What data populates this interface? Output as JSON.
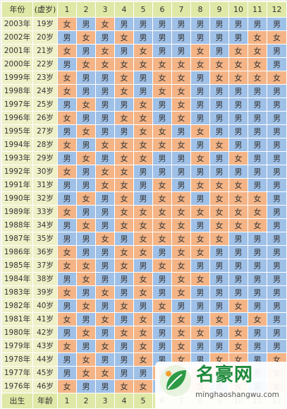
{
  "header": {
    "col_year": "年份",
    "col_age": "(虚岁)",
    "months": [
      "1",
      "2",
      "3",
      "4",
      "5",
      "6",
      "7",
      "8",
      "9",
      "10",
      "11",
      "12"
    ]
  },
  "footer": {
    "label_birth": "出生",
    "label_age": "年龄",
    "months": [
      "1",
      "2",
      "3",
      "4",
      "5",
      "6",
      "7",
      "8",
      "9",
      "10",
      "11",
      "12"
    ]
  },
  "rows": [
    {
      "year": "2003年",
      "age": "19岁",
      "cells": [
        "女",
        "男",
        "女",
        "男",
        "男",
        "男",
        "男",
        "男",
        "男",
        "男",
        "男",
        "男"
      ]
    },
    {
      "year": "2002年",
      "age": "20岁",
      "cells": [
        "男",
        "女",
        "男",
        "女",
        "男",
        "男",
        "男",
        "男",
        "男",
        "男",
        "女",
        "女"
      ]
    },
    {
      "year": "2001年",
      "age": "21岁",
      "cells": [
        "女",
        "男",
        "女",
        "男",
        "女",
        "男",
        "男",
        "女",
        "男",
        "女",
        "女",
        "男"
      ]
    },
    {
      "year": "2000年",
      "age": "22岁",
      "cells": [
        "男",
        "女",
        "女",
        "女",
        "女",
        "女",
        "女",
        "女",
        "女",
        "女",
        "女",
        "男"
      ]
    },
    {
      "year": "1999年",
      "age": "23岁",
      "cells": [
        "女",
        "男",
        "男",
        "女",
        "男",
        "女",
        "女",
        "男",
        "女",
        "女",
        "女",
        "女"
      ]
    },
    {
      "year": "1998年",
      "age": "24岁",
      "cells": [
        "女",
        "男",
        "男",
        "女",
        "男",
        "女",
        "女",
        "男",
        "男",
        "男",
        "男",
        "男"
      ]
    },
    {
      "year": "1997年",
      "age": "25岁",
      "cells": [
        "男",
        "女",
        "男",
        "男",
        "女",
        "男",
        "女",
        "男",
        "男",
        "男",
        "男",
        "男"
      ]
    },
    {
      "year": "1996年",
      "age": "26岁",
      "cells": [
        "女",
        "男",
        "男",
        "女",
        "女",
        "男",
        "女",
        "男",
        "男",
        "男",
        "男",
        "男"
      ]
    },
    {
      "year": "1995年",
      "age": "27岁",
      "cells": [
        "男",
        "女",
        "男",
        "男",
        "女",
        "女",
        "男",
        "女",
        "男",
        "男",
        "男",
        "男"
      ]
    },
    {
      "year": "1994年",
      "age": "28岁",
      "cells": [
        "女",
        "男",
        "女",
        "女",
        "女",
        "女",
        "女",
        "男",
        "女",
        "男",
        "男",
        "男"
      ]
    },
    {
      "year": "1993年",
      "age": "29岁",
      "cells": [
        "男",
        "女",
        "男",
        "女",
        "女",
        "男",
        "男",
        "女",
        "男",
        "女",
        "男",
        "男"
      ]
    },
    {
      "year": "1992年",
      "age": "30岁",
      "cells": [
        "女",
        "男",
        "女",
        "女",
        "男",
        "男",
        "男",
        "男",
        "男",
        "男",
        "男",
        "男"
      ]
    },
    {
      "year": "1991年",
      "age": "31岁",
      "cells": [
        "男",
        "男",
        "女",
        "女",
        "男",
        "女",
        "男",
        "女",
        "女",
        "女",
        "男",
        "男"
      ]
    },
    {
      "year": "1990年",
      "age": "32岁",
      "cells": [
        "男",
        "女",
        "男",
        "女",
        "男",
        "女",
        "女",
        "男",
        "女",
        "女",
        "女",
        "男"
      ]
    },
    {
      "year": "1989年",
      "age": "33岁",
      "cells": [
        "女",
        "男",
        "男",
        "女",
        "女",
        "女",
        "女",
        "女",
        "女",
        "女",
        "女",
        "男"
      ]
    },
    {
      "year": "1988年",
      "age": "34岁",
      "cells": [
        "男",
        "女",
        "男",
        "女",
        "女",
        "女",
        "女",
        "男",
        "女",
        "女",
        "女",
        "男"
      ]
    },
    {
      "year": "1987年",
      "age": "35岁",
      "cells": [
        "男",
        "男",
        "女",
        "男",
        "女",
        "女",
        "女",
        "女",
        "女",
        "男",
        "男",
        "男"
      ]
    },
    {
      "year": "1986年",
      "age": "36岁",
      "cells": [
        "女",
        "男",
        "男",
        "女",
        "女",
        "男",
        "女",
        "女",
        "男",
        "男",
        "男",
        "男"
      ]
    },
    {
      "year": "1985年",
      "age": "37岁",
      "cells": [
        "女",
        "女",
        "男",
        "女",
        "男",
        "女",
        "女",
        "男",
        "男",
        "男",
        "男",
        "男"
      ]
    },
    {
      "year": "1984年",
      "age": "38岁",
      "cells": [
        "男",
        "女",
        "男",
        "男",
        "女",
        "男",
        "女",
        "女",
        "男",
        "男",
        "男",
        "男"
      ]
    },
    {
      "year": "1983年",
      "age": "39岁",
      "cells": [
        "女",
        "男",
        "女",
        "男",
        "女",
        "男",
        "女",
        "男",
        "男",
        "男",
        "男",
        "男"
      ]
    },
    {
      "year": "1982年",
      "age": "40岁",
      "cells": [
        "男",
        "女",
        "男",
        "女",
        "男",
        "女",
        "男",
        "男",
        "男",
        "女",
        "男",
        "男"
      ]
    },
    {
      "year": "1981年",
      "age": "41岁",
      "cells": [
        "女",
        "男",
        "女",
        "男",
        "女",
        "男",
        "女",
        "男",
        "女",
        "男",
        "女",
        "男"
      ]
    },
    {
      "year": "1980年",
      "age": "42岁",
      "cells": [
        "男",
        "女",
        "男",
        "女",
        "女",
        "男",
        "女",
        "女",
        "男",
        "女",
        "男",
        "男"
      ]
    },
    {
      "year": "1979年",
      "age": "43岁",
      "cells": [
        "女",
        "男",
        "女",
        "男",
        "女",
        "男",
        "女",
        "男",
        "男",
        "女",
        "男",
        "男"
      ]
    },
    {
      "year": "1978年",
      "age": "44岁",
      "cells": [
        "男",
        "女",
        "男",
        "男",
        "女",
        "男",
        "女",
        "男",
        "女",
        "女",
        "男",
        "女"
      ]
    },
    {
      "year": "1977年",
      "age": "45岁",
      "cells": [
        "男",
        "女",
        "女",
        "男",
        "男",
        "女",
        "男",
        "女",
        "女",
        "女",
        "男",
        "女"
      ]
    },
    {
      "year": "1976年",
      "age": "46岁",
      "cells": [
        "女",
        "男",
        "男",
        "女",
        "女",
        "男",
        "女",
        "女",
        "男",
        "女",
        "男",
        "女"
      ]
    }
  ],
  "labels": {
    "male": "男",
    "female": "女"
  },
  "colors": {
    "male_bg": "#9fc0e7",
    "female_bg": "#f4b486",
    "header_bg": "#dfe8a6",
    "side_bg": "#eef0c8"
  },
  "watermark": {
    "title": "名豪网",
    "url": "minghaoshangwu.com"
  }
}
